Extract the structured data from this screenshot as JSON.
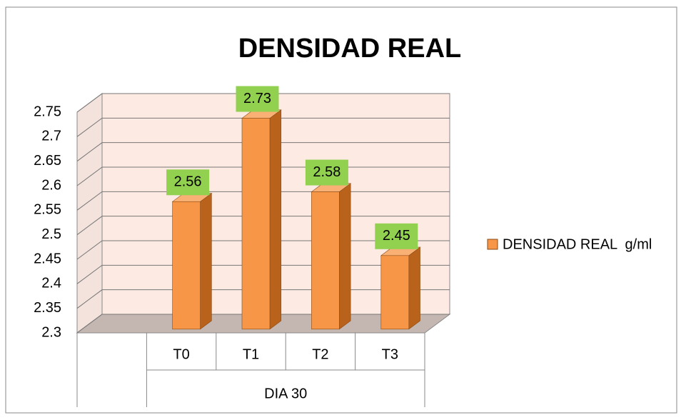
{
  "chart_data": {
    "type": "bar3d",
    "title": "DENSIDAD REAL",
    "categories": [
      null,
      "T0",
      "T1",
      "T2",
      "T3"
    ],
    "group_label": "DIA 30",
    "series": [
      {
        "name": "DENSIDAD REAL  g/ml",
        "color": "#f79646",
        "values": [
          null,
          2.56,
          2.73,
          2.58,
          2.45
        ]
      }
    ],
    "ylim": [
      2.3,
      2.75
    ],
    "yticks": [
      2.3,
      2.35,
      2.4,
      2.45,
      2.5,
      2.55,
      2.6,
      2.65,
      2.7,
      2.75
    ],
    "grid": true,
    "legend": "right",
    "label_color": "#92d050"
  }
}
